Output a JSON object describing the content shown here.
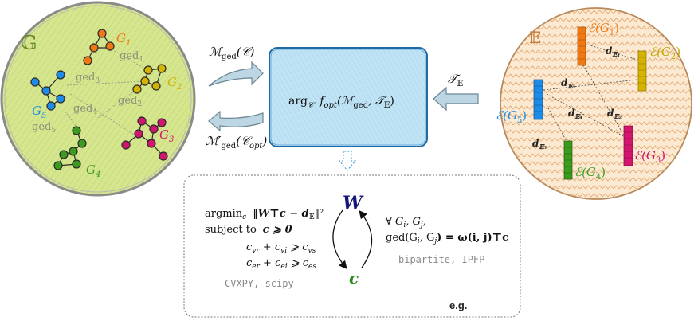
{
  "left_space": {
    "symbol": "𝔾",
    "graphs": [
      "G1",
      "G2",
      "G3",
      "G4",
      "G5"
    ],
    "graph_labels": {
      "g1": {
        "base": "G",
        "sub": "1"
      },
      "g2": {
        "base": "G",
        "sub": "2"
      },
      "g3": {
        "base": "G",
        "sub": "3"
      },
      "g4": {
        "base": "G",
        "sub": "4"
      },
      "g5": {
        "base": "G",
        "sub": "5"
      }
    },
    "ged_labels": {
      "ged1": {
        "base": "ged",
        "sub": "1"
      },
      "ged2": {
        "base": "ged",
        "sub": "2"
      },
      "ged3": {
        "base": "ged",
        "sub": "3"
      },
      "ged4": {
        "base": "ged",
        "sub": "4"
      },
      "ged5": {
        "base": "ged",
        "sub": "5"
      }
    },
    "colors": {
      "g1": "#f07814",
      "g2": "#d4b400",
      "g3": "#d2156e",
      "g4": "#3c9b1e",
      "g5": "#1e8ce6",
      "fill": "#d3e58a"
    }
  },
  "right_space": {
    "symbol": "𝔼",
    "embeddings": {
      "e1": {
        "base": "ℰ(G",
        "sub": "1",
        "close": ")"
      },
      "e2": {
        "base": "ℰ(G",
        "sub": "2",
        "close": ")"
      },
      "e3": {
        "base": "ℰ(G",
        "sub": "3",
        "close": ")"
      },
      "e4": {
        "base": "ℰ(G",
        "sub": "4",
        "close": ")"
      },
      "e5": {
        "base": "ℰ(G",
        "sub": "5",
        "close": ")"
      }
    },
    "distances": {
      "d1": {
        "base": "d",
        "sub": "𝔼₁"
      },
      "d2": {
        "base": "d",
        "sub": "𝔼₂"
      },
      "d3": {
        "base": "d",
        "sub": "𝔼₃"
      },
      "d4": {
        "base": "d",
        "sub": "𝔼₄"
      },
      "d5": {
        "base": "d",
        "sub": "𝔼₅"
      }
    },
    "colors": {
      "fill": "#fbe7cf",
      "stroke": "#b8895a"
    }
  },
  "center": {
    "box_text": {
      "arg": "arg",
      "arg_sub": "𝒞",
      "f": "f",
      "f_sub": "opt",
      "open": "(ℳ",
      "m_sub": "ged",
      "mid": ", 𝒯",
      "t_sub": "𝔼",
      "close": ")"
    },
    "arrow_top_label": {
      "base": "ℳ",
      "sub": "ged",
      "rest": "(𝒞)"
    },
    "arrow_bottom_label": {
      "base": "ℳ′",
      "sub": "ged",
      "rest": "(𝒞",
      "rest_sub": "opt",
      "close": ")"
    },
    "arrow_right_label": {
      "base": "𝒯",
      "sub": "𝔼"
    },
    "box_fill": "#bfe3f5",
    "box_stroke": "#1f6aa5"
  },
  "bottom_panel": {
    "argmin": {
      "base": "argmin",
      "sub": "c"
    },
    "objective": "‖W⊤c − d",
    "objective_sub": "𝔼",
    "objective_end": "‖²",
    "subject_to": "subject to",
    "constraint0": "c ⩾ 0",
    "constraint1": {
      "a": "c",
      "a_sub": "vr",
      "b": " + c",
      "b_sub": "vi",
      "c": " ⩾ c",
      "c_sub": "vs"
    },
    "constraint2": {
      "a": "c",
      "a_sub": "er",
      "b": " + c",
      "b_sub": "ei",
      "c": " ⩾ c",
      "c_sub": "es"
    },
    "solvers_left": "CVXPY, scipy",
    "W_label": "W",
    "c_label": "c",
    "forall": "∀ G",
    "forall_i": "i",
    "forall_mid": ", G",
    "forall_j": "j",
    "forall_end": ",",
    "ged_eq": "ged(G",
    "ged_eq_i": "i",
    "ged_eq_mid": ", G",
    "ged_eq_j": "j",
    "ged_eq_end": ") = ω(i, j)⊤c",
    "solvers_right": "bipartite, IPFP",
    "eg": "e.g."
  }
}
